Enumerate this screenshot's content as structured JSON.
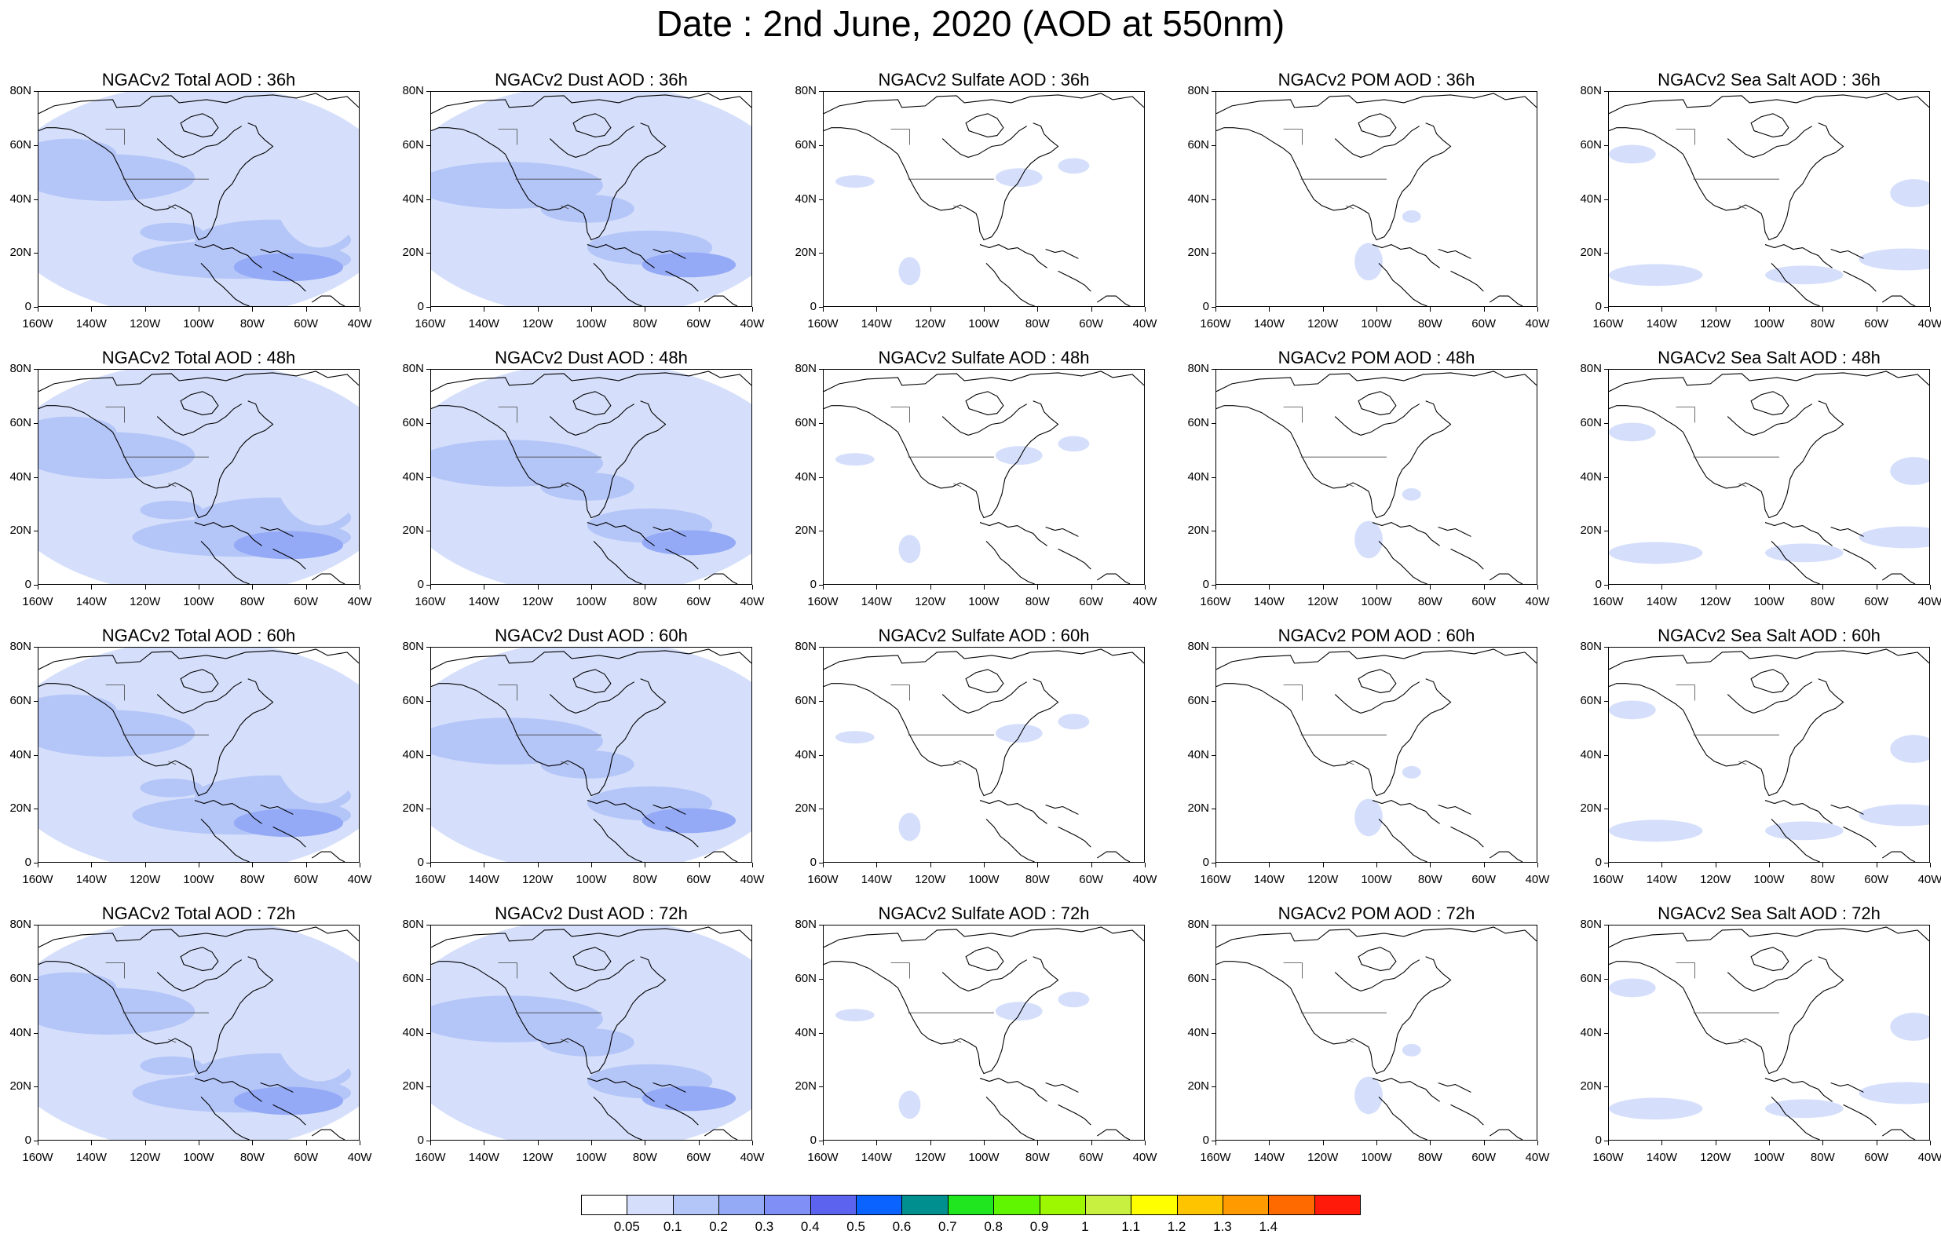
{
  "title": "Date : 2nd June, 2020 (AOD at 550nm)",
  "x_ticks": [
    "160W",
    "140W",
    "120W",
    "100W",
    "80W",
    "60W",
    "40W"
  ],
  "y_ticks": [
    "80N",
    "60N",
    "40N",
    "20N",
    "0"
  ],
  "panels": [
    {
      "title": "NGACv2 Total AOD : 36h",
      "kind": "total",
      "level": 2
    },
    {
      "title": "NGACv2 Dust AOD : 36h",
      "kind": "dust",
      "level": 2
    },
    {
      "title": "NGACv2 Sulfate AOD : 36h",
      "kind": "sulfate",
      "level": 1
    },
    {
      "title": "NGACv2 POM AOD : 36h",
      "kind": "pom",
      "level": 1
    },
    {
      "title": "NGACv2 Sea Salt AOD : 36h",
      "kind": "seasalt",
      "level": 1
    },
    {
      "title": "NGACv2 Total AOD : 48h",
      "kind": "total",
      "level": 2
    },
    {
      "title": "NGACv2 Dust AOD : 48h",
      "kind": "dust",
      "level": 2
    },
    {
      "title": "NGACv2 Sulfate AOD : 48h",
      "kind": "sulfate",
      "level": 1
    },
    {
      "title": "NGACv2 POM AOD : 48h",
      "kind": "pom",
      "level": 1
    },
    {
      "title": "NGACv2 Sea Salt AOD : 48h",
      "kind": "seasalt",
      "level": 1
    },
    {
      "title": "NGACv2 Total AOD : 60h",
      "kind": "total",
      "level": 2
    },
    {
      "title": "NGACv2 Dust AOD : 60h",
      "kind": "dust",
      "level": 2
    },
    {
      "title": "NGACv2 Sulfate AOD : 60h",
      "kind": "sulfate",
      "level": 1
    },
    {
      "title": "NGACv2 POM AOD : 60h",
      "kind": "pom",
      "level": 1
    },
    {
      "title": "NGACv2 Sea Salt AOD : 60h",
      "kind": "seasalt",
      "level": 1
    },
    {
      "title": "NGACv2 Total AOD : 72h",
      "kind": "total",
      "level": 2
    },
    {
      "title": "NGACv2 Dust AOD : 72h",
      "kind": "dust",
      "level": 2
    },
    {
      "title": "NGACv2 Sulfate AOD : 72h",
      "kind": "sulfate",
      "level": 1
    },
    {
      "title": "NGACv2 POM AOD : 72h",
      "kind": "pom",
      "level": 1
    },
    {
      "title": "NGACv2 Sea Salt  AOD : 72h",
      "kind": "seasalt",
      "level": 1
    }
  ],
  "colorbar": {
    "labels": [
      "0.05",
      "0.1",
      "0.2",
      "0.3",
      "0.4",
      "0.5",
      "0.6",
      "0.7",
      "0.8",
      "0.9",
      "1",
      "1.1",
      "1.2",
      "1.3",
      "1.4"
    ],
    "colors": [
      "#ffffff",
      "#d5dffb",
      "#b4c5f8",
      "#94aaf6",
      "#7f8ff5",
      "#5c63ee",
      "#0a62ff",
      "#008f8f",
      "#1fe61f",
      "#60f500",
      "#9cf700",
      "#c8f040",
      "#ffff00",
      "#ffc400",
      "#ff9a00",
      "#ff6a00",
      "#ff1a0a"
    ]
  }
}
